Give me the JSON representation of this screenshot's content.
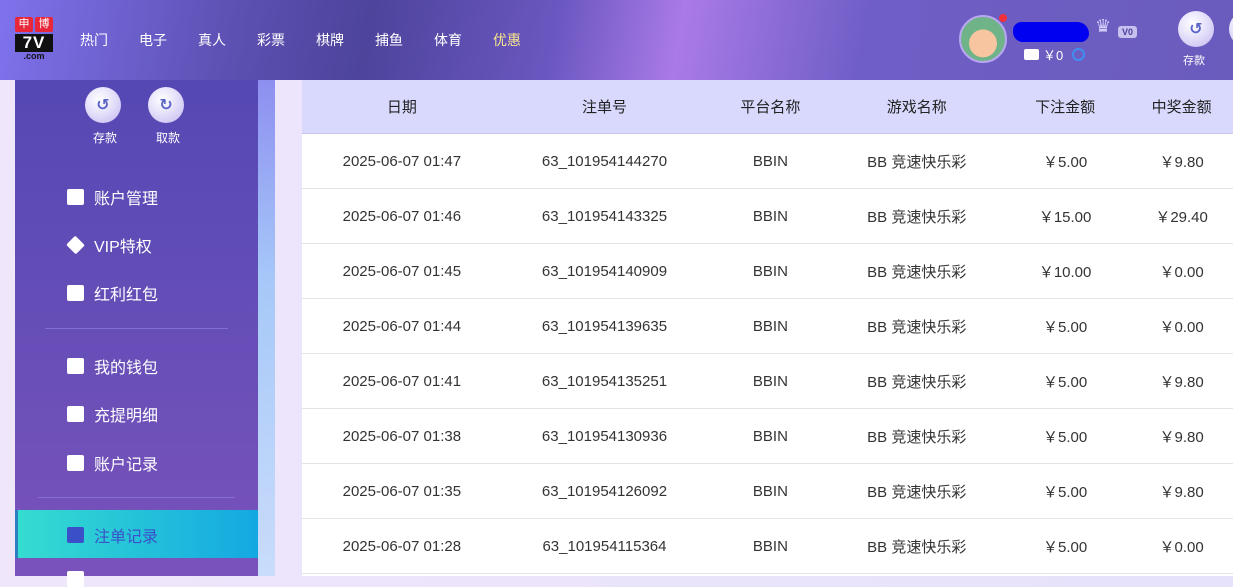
{
  "header": {
    "logo_text": "申博 7V .com",
    "nav": [
      "热门",
      "电子",
      "真人",
      "彩票",
      "棋牌",
      "捕鱼",
      "体育",
      "优惠"
    ],
    "highlight_nav": "优惠",
    "vip_level": "V0",
    "balance": "￥0",
    "deposit_label": "存款"
  },
  "sidebar": {
    "deposit": "存款",
    "withdraw": "取款",
    "groups": [
      [
        "账户管理",
        "VIP特权",
        "红利红包"
      ],
      [
        "我的钱包",
        "充提明细",
        "账户记录"
      ]
    ],
    "active": "注单记录"
  },
  "table": {
    "columns": [
      "日期",
      "注单号",
      "平台名称",
      "游戏名称",
      "下注金额",
      "中奖金额"
    ],
    "rows": [
      [
        "2025-06-07 01:47",
        "63_101954144270",
        "BBIN",
        "BB 竞速快乐彩",
        "￥5.00",
        "￥9.80"
      ],
      [
        "2025-06-07 01:46",
        "63_101954143325",
        "BBIN",
        "BB 竞速快乐彩",
        "￥15.00",
        "￥29.40"
      ],
      [
        "2025-06-07 01:45",
        "63_101954140909",
        "BBIN",
        "BB 竞速快乐彩",
        "￥10.00",
        "￥0.00"
      ],
      [
        "2025-06-07 01:44",
        "63_101954139635",
        "BBIN",
        "BB 竞速快乐彩",
        "￥5.00",
        "￥0.00"
      ],
      [
        "2025-06-07 01:41",
        "63_101954135251",
        "BBIN",
        "BB 竞速快乐彩",
        "￥5.00",
        "￥9.80"
      ],
      [
        "2025-06-07 01:38",
        "63_101954130936",
        "BBIN",
        "BB 竞速快乐彩",
        "￥5.00",
        "￥9.80"
      ],
      [
        "2025-06-07 01:35",
        "63_101954126092",
        "BBIN",
        "BB 竞速快乐彩",
        "￥5.00",
        "￥9.80"
      ],
      [
        "2025-06-07 01:28",
        "63_101954115364",
        "BBIN",
        "BB 竞速快乐彩",
        "￥5.00",
        "￥0.00"
      ]
    ]
  },
  "colors": {
    "accent": "#f7e58c",
    "active_start": "#35dcd0",
    "active_end": "#14a8e2",
    "table_header": "#d8d9fc"
  }
}
